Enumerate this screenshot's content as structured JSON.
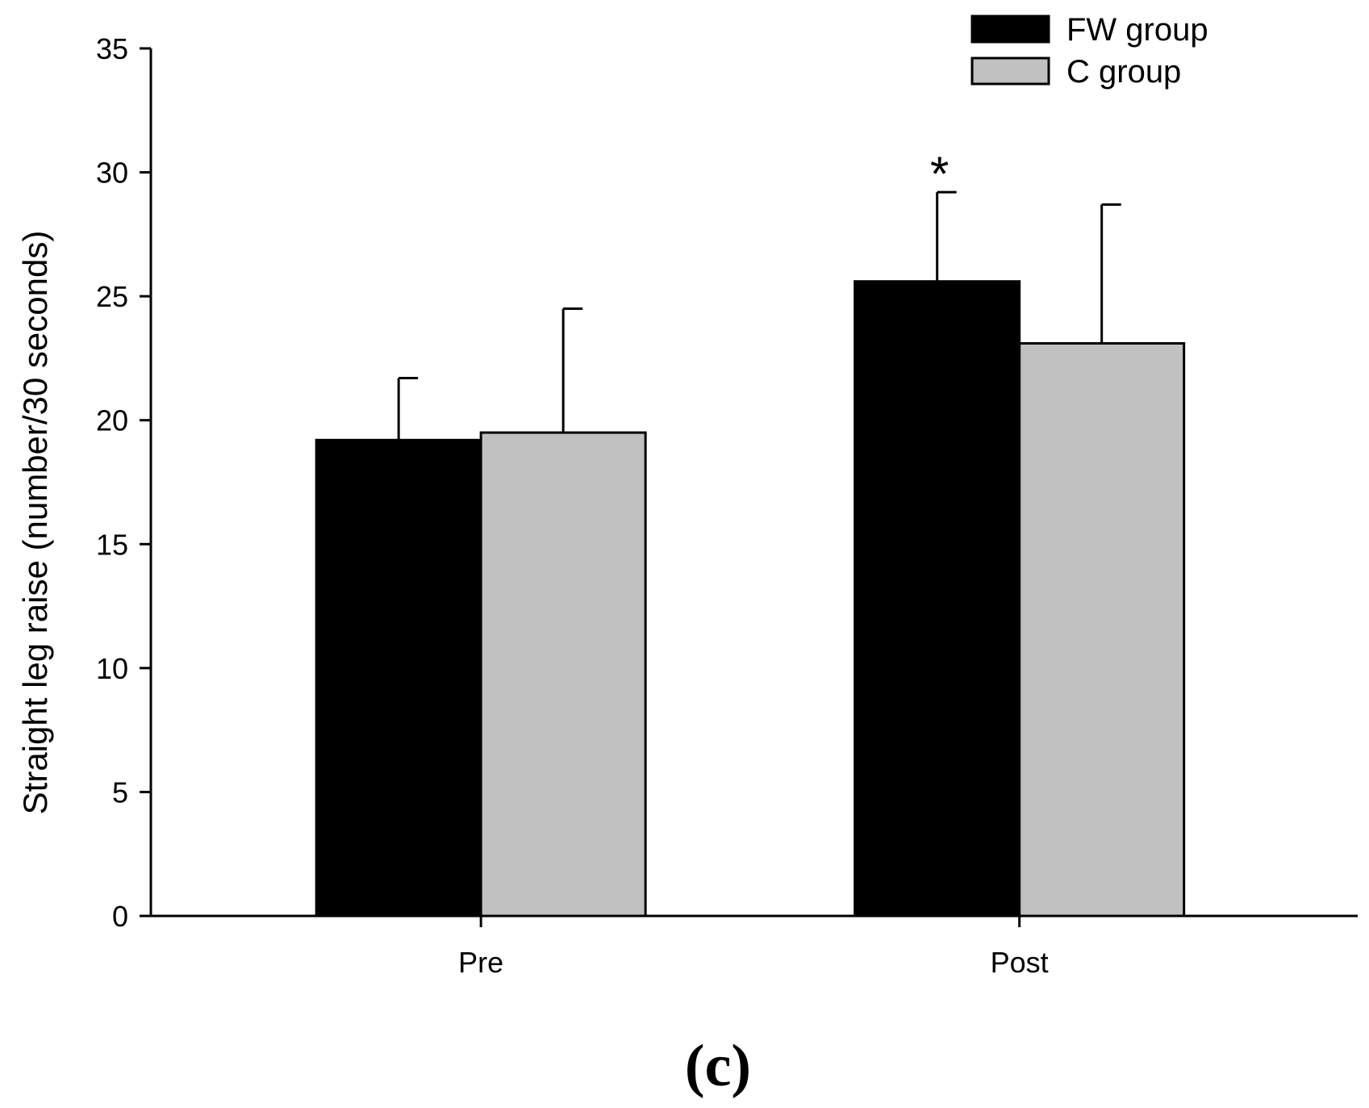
{
  "chart_data": {
    "type": "bar",
    "title": "",
    "xlabel": "",
    "ylabel": "Straight leg raise (number/30 seconds)",
    "ylim": [
      0,
      35
    ],
    "yticks": [
      0,
      5,
      10,
      15,
      20,
      25,
      30,
      35
    ],
    "categories": [
      "Pre",
      "Post"
    ],
    "grid": false,
    "legend_position": "top-right",
    "series": [
      {
        "name": "FW group",
        "color": "#000000",
        "values": [
          19.2,
          25.6
        ],
        "error": [
          2.5,
          3.6
        ]
      },
      {
        "name": "C group",
        "color": "#c0c0c0",
        "values": [
          19.5,
          23.1
        ],
        "error": [
          5.0,
          5.6
        ]
      }
    ],
    "annotations": [
      {
        "text": "*",
        "series": "FW group",
        "category": "Post"
      }
    ],
    "panel_label": "(c)"
  }
}
